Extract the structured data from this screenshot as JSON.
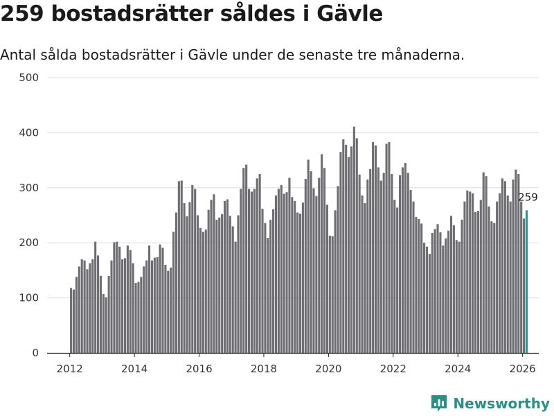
{
  "colors": {
    "bar": "#6e6d72",
    "highlight": "#1f9c8f",
    "grid": "#dddddd",
    "axis": "#222222",
    "brand": "#2a8f86"
  },
  "brand": {
    "name": "Newsworthy",
    "icon": "chart-logo-icon"
  },
  "chart_data": {
    "type": "bar",
    "title": "259 bostadsrätter såldes i Gävle",
    "subtitle": "Antal sålda bostadsrätter i Gävle under de senaste tre månaderna.",
    "xlabel": "",
    "ylabel": "",
    "ylim": [
      0,
      500
    ],
    "yticks": [
      0,
      100,
      200,
      300,
      400,
      500
    ],
    "xticks": [
      2012,
      2014,
      2016,
      2018,
      2020,
      2022,
      2024,
      2026
    ],
    "x_range": [
      2011.3,
      2026.5
    ],
    "grid": true,
    "legend": "none",
    "start": {
      "year": 2012,
      "month": 1
    },
    "values": [
      118,
      115,
      138,
      157,
      170,
      168,
      152,
      163,
      170,
      202,
      177,
      140,
      107,
      101,
      140,
      168,
      201,
      202,
      193,
      170,
      172,
      195,
      187,
      163,
      127,
      129,
      138,
      157,
      168,
      195,
      168,
      173,
      174,
      197,
      191,
      160,
      149,
      155,
      220,
      255,
      312,
      313,
      272,
      248,
      274,
      305,
      298,
      250,
      227,
      220,
      224,
      260,
      278,
      288,
      242,
      246,
      252,
      276,
      279,
      249,
      230,
      202,
      250,
      298,
      336,
      342,
      298,
      293,
      298,
      317,
      325,
      262,
      236,
      209,
      242,
      261,
      286,
      298,
      305,
      289,
      292,
      318,
      283,
      276,
      255,
      253,
      273,
      316,
      351,
      330,
      299,
      285,
      318,
      361,
      336,
      269,
      213,
      212,
      259,
      303,
      365,
      388,
      378,
      356,
      375,
      411,
      390,
      324,
      286,
      272,
      315,
      334,
      383,
      377,
      337,
      313,
      327,
      380,
      383,
      325,
      278,
      264,
      323,
      337,
      345,
      327,
      296,
      275,
      247,
      243,
      235,
      200,
      193,
      180,
      218,
      225,
      234,
      219,
      195,
      208,
      222,
      249,
      232,
      205,
      202,
      242,
      275,
      295,
      293,
      290,
      256,
      258,
      278,
      328,
      321,
      266,
      239,
      236,
      275,
      290,
      317,
      312,
      286,
      275,
      315,
      333,
      325,
      275,
      244,
      259
    ],
    "highlight_label": "259"
  }
}
